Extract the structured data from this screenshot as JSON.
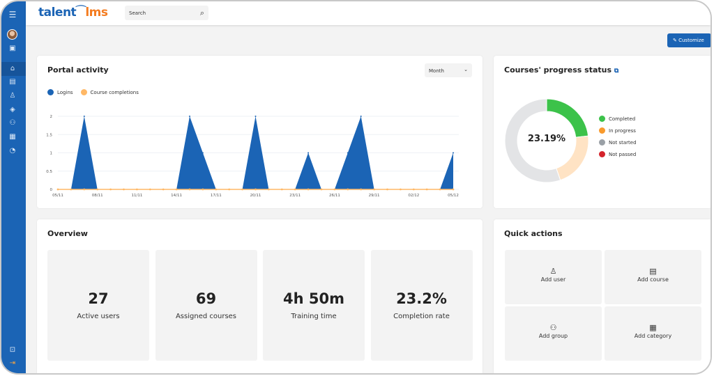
{
  "app": {
    "logo_left": "talent",
    "logo_right": "lms"
  },
  "header": {
    "search_placeholder": "Search"
  },
  "sidebar": {
    "items": [
      "menu-icon",
      "profile-icon",
      "home-icon",
      "courses-icon",
      "users-icon",
      "categories-icon",
      "groups-icon",
      "reports-icon",
      "analytics-icon",
      "account-icon",
      "logout-icon"
    ]
  },
  "toolbar": {
    "customize_label": "Customize"
  },
  "portal": {
    "title": "Portal activity",
    "period": "Month",
    "legend": [
      "Logins",
      "Course completions"
    ]
  },
  "progress": {
    "title": "Courses' progress status",
    "center_label": "23.19%",
    "legend": [
      {
        "label": "Completed",
        "color": "#3cc24a"
      },
      {
        "label": "In progress",
        "color": "#f99a2c"
      },
      {
        "label": "Not started",
        "color": "#9aa0a6"
      },
      {
        "label": "Not passed",
        "color": "#d4232b"
      }
    ]
  },
  "overview": {
    "title": "Overview",
    "stats": [
      {
        "value": "27",
        "label": "Active users"
      },
      {
        "value": "69",
        "label": "Assigned courses"
      },
      {
        "value": "4h 50m",
        "label": "Training time"
      },
      {
        "value": "23.2%",
        "label": "Completion rate"
      }
    ]
  },
  "quick": {
    "title": "Quick actions",
    "actions": [
      {
        "label": "Add user",
        "icon": "user-icon"
      },
      {
        "label": "Add course",
        "icon": "book-icon"
      },
      {
        "label": "Add group",
        "icon": "group-icon"
      },
      {
        "label": "Add category",
        "icon": "category-icon"
      }
    ]
  },
  "colors": {
    "brand": "#1b64b5",
    "accent": "#f47c20",
    "logins": "#1b64b5",
    "completions": "#ffb866"
  },
  "chart_data": [
    {
      "type": "area",
      "title": "Portal activity",
      "x_tick_labels": [
        "05/11",
        "08/11",
        "11/11",
        "14/11",
        "17/11",
        "20/11",
        "23/11",
        "26/11",
        "29/11",
        "02/12",
        "05/12"
      ],
      "y_tick_labels": [
        "0",
        "0.5",
        "1",
        "1.5",
        "2"
      ],
      "ylim": [
        0,
        2
      ],
      "grid": true,
      "legend": "top-left",
      "x": [
        "05/11",
        "06/11",
        "07/11",
        "08/11",
        "09/11",
        "10/11",
        "11/11",
        "12/11",
        "13/11",
        "14/11",
        "15/11",
        "16/11",
        "17/11",
        "18/11",
        "19/11",
        "20/11",
        "21/11",
        "22/11",
        "23/11",
        "24/11",
        "25/11",
        "26/11",
        "27/11",
        "28/11",
        "29/11",
        "30/11",
        "01/12",
        "02/12",
        "03/12",
        "04/12",
        "05/12"
      ],
      "series": [
        {
          "name": "Logins",
          "values": [
            0,
            0,
            2,
            0,
            0,
            0,
            0,
            0,
            0,
            0,
            2,
            1,
            0,
            0,
            0,
            2,
            0,
            0,
            0,
            1,
            0,
            0,
            1,
            2,
            0,
            0,
            0,
            0,
            0,
            0,
            1
          ]
        },
        {
          "name": "Course completions",
          "values": [
            0,
            0,
            0,
            0,
            0,
            0,
            0,
            0,
            0,
            0,
            0,
            0,
            0,
            0,
            0,
            0,
            0,
            0,
            0,
            0,
            0,
            0,
            0,
            0,
            0,
            0,
            0,
            0,
            0,
            0,
            0
          ]
        }
      ]
    },
    {
      "type": "pie",
      "title": "Courses' progress status",
      "categories": [
        "Completed",
        "In progress",
        "Not started",
        "Not passed"
      ],
      "values": [
        23.19,
        21.5,
        55.31,
        0
      ]
    }
  ]
}
